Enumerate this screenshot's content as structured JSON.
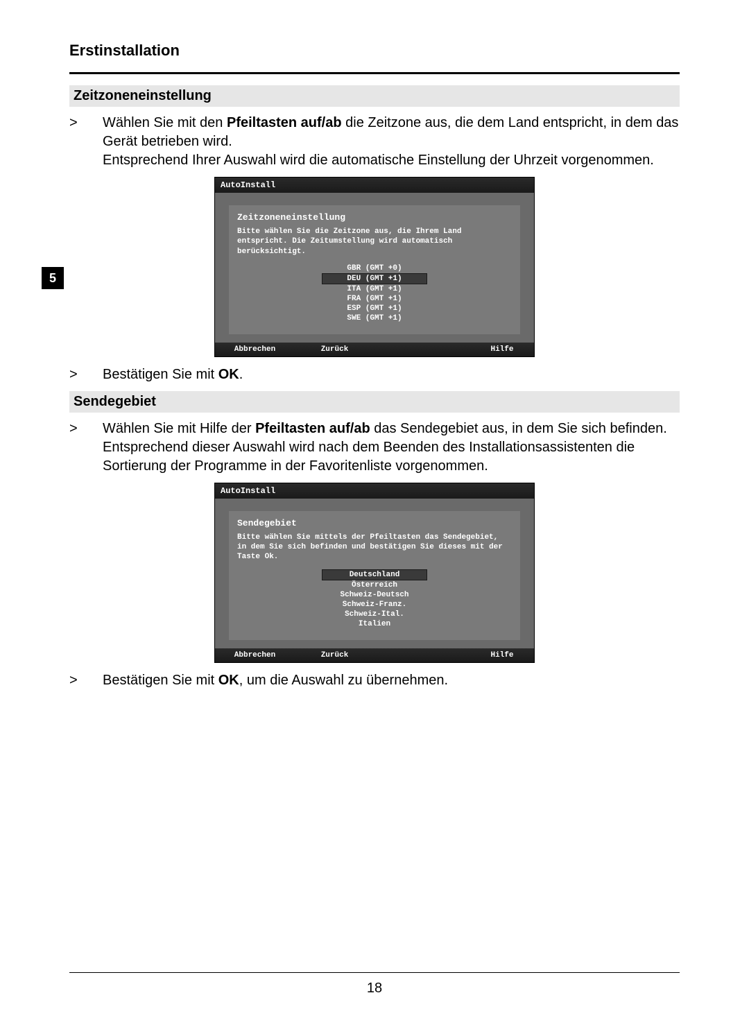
{
  "chapter_title": "Erstinstallation",
  "side_tab": "5",
  "page_number": "18",
  "section1": {
    "heading": "Zeitzoneneinstellung",
    "p1_prefix": "Wählen Sie mit den ",
    "p1_bold": "Pfeiltasten auf/ab",
    "p1_suffix": " die Zeitzone aus, die dem Land entspricht, in dem das Gerät betrieben wird.",
    "p2": "Entsprechend Ihrer Auswahl wird die automatische Einstellung der Uhrzeit vorgenommen.",
    "confirm_prefix": "Bestätigen Sie mit ",
    "confirm_bold": "OK",
    "confirm_suffix": "."
  },
  "shot1": {
    "title": "AutoInstall",
    "panel_title": "Zeitzoneneinstellung",
    "panel_desc": "Bitte wählen Sie die Zeitzone aus, die Ihrem Land entspricht. Die Zeitumstellung wird automatisch berücksichtigt.",
    "items": [
      {
        "label": "GBR (GMT +0)",
        "selected": false
      },
      {
        "label": "DEU (GMT +1)",
        "selected": true
      },
      {
        "label": "ITA (GMT +1)",
        "selected": false
      },
      {
        "label": "FRA (GMT +1)",
        "selected": false
      },
      {
        "label": "ESP (GMT +1)",
        "selected": false
      },
      {
        "label": "SWE (GMT +1)",
        "selected": false
      }
    ],
    "footer": {
      "c1": "Abbrechen",
      "c2": "Zurück",
      "c3": "",
      "c4": "Hilfe"
    }
  },
  "section2": {
    "heading": "Sendegebiet",
    "p1_prefix": "Wählen Sie mit Hilfe der ",
    "p1_bold": "Pfeiltasten auf/ab",
    "p1_suffix": " das Sendegebiet aus, in dem Sie sich befinden.",
    "p2": "Entsprechend dieser Auswahl wird nach dem Beenden des Installationsassistenten die Sortierung der Programme in der Favoritenliste vorgenommen.",
    "confirm_prefix": "Bestätigen Sie mit ",
    "confirm_bold": "OK",
    "confirm_suffix": ", um die Auswahl zu übernehmen."
  },
  "shot2": {
    "title": "AutoInstall",
    "panel_title": "Sendegebiet",
    "panel_desc": "Bitte wählen Sie mittels der Pfeiltasten das Sendegebiet, in dem Sie sich befinden und bestätigen Sie dieses mit der Taste Ok.",
    "items": [
      {
        "label": "Deutschland",
        "selected": true
      },
      {
        "label": "Österreich",
        "selected": false
      },
      {
        "label": "Schweiz-Deutsch",
        "selected": false
      },
      {
        "label": "Schweiz-Franz.",
        "selected": false
      },
      {
        "label": "Schweiz-Ital.",
        "selected": false
      },
      {
        "label": "Italien",
        "selected": false
      }
    ],
    "footer": {
      "c1": "Abbrechen",
      "c2": "Zurück",
      "c3": "",
      "c4": "Hilfe"
    }
  },
  "marker": ">"
}
